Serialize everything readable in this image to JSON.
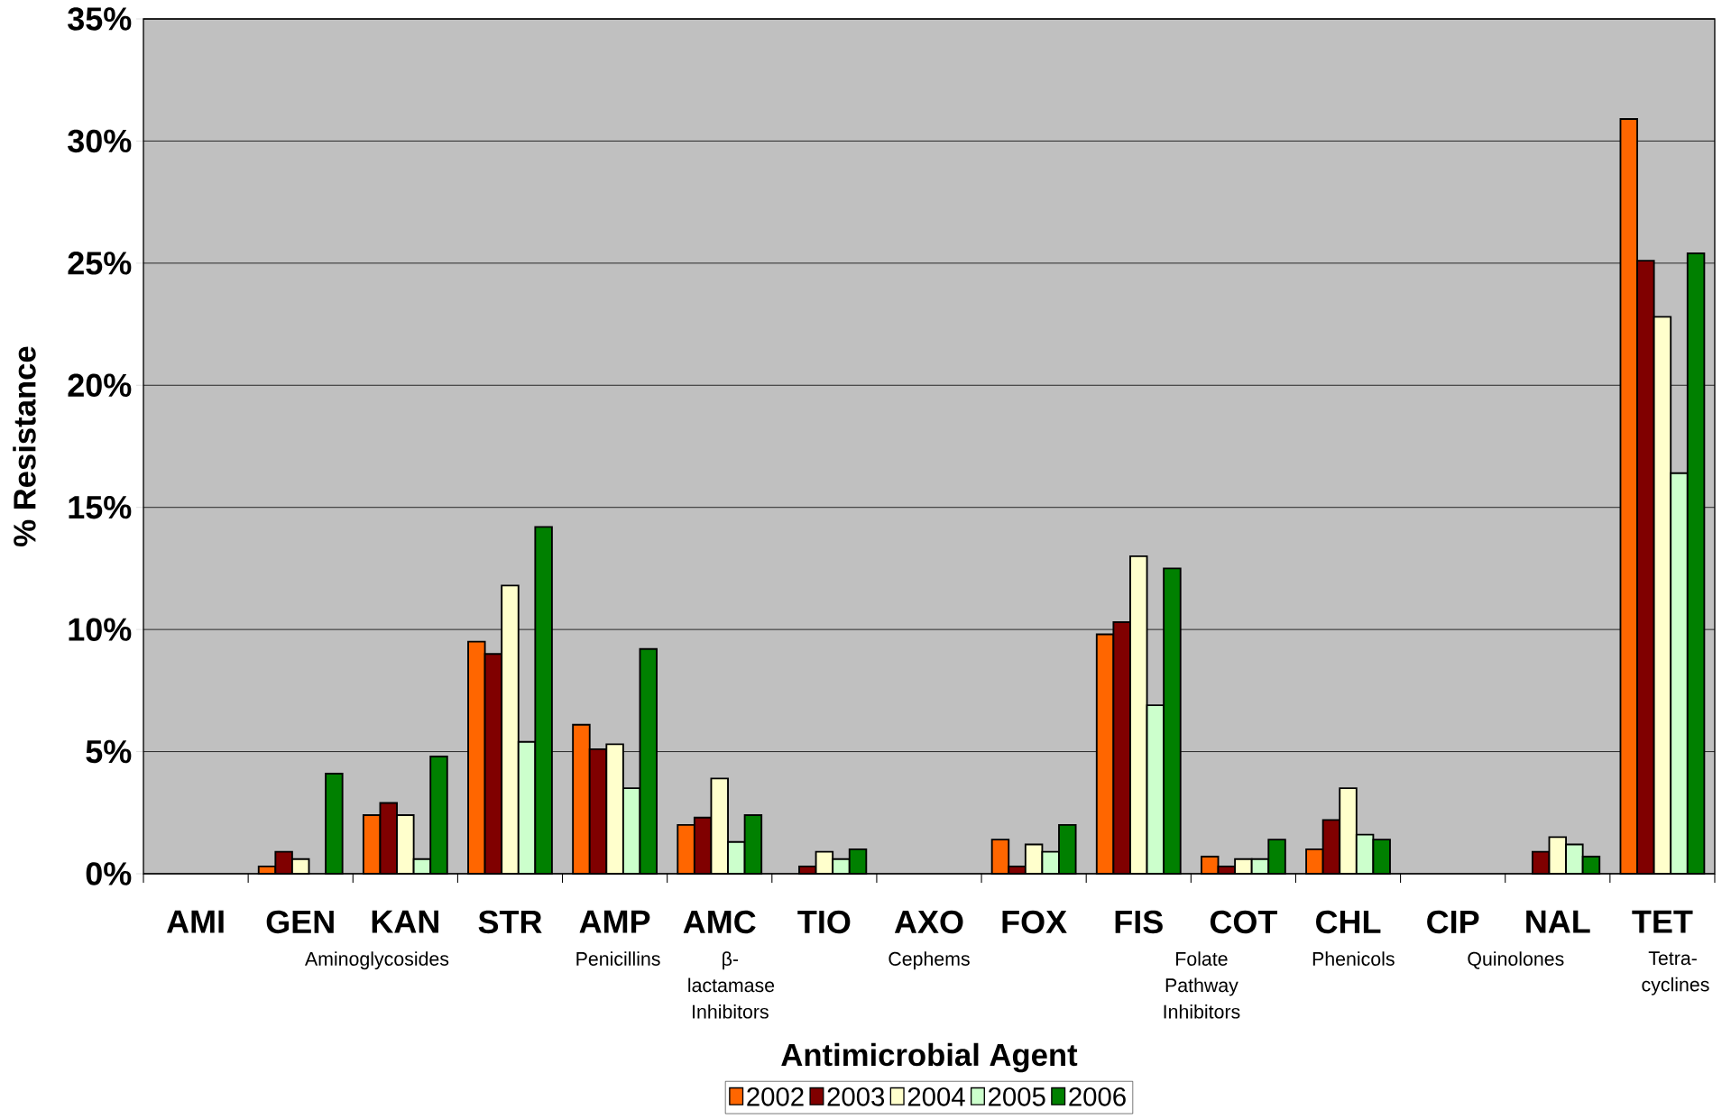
{
  "chart_data": {
    "type": "bar",
    "xlabel": "Antimicrobial Agent",
    "ylabel": "% Resistance",
    "categories": [
      "AMI",
      "GEN",
      "KAN",
      "STR",
      "AMP",
      "AMC",
      "TIO",
      "AXO",
      "FOX",
      "FIS",
      "COT",
      "CHL",
      "CIP",
      "NAL",
      "TET"
    ],
    "series": [
      {
        "name": "2002",
        "color": "#ff6600",
        "values": [
          0,
          0.3,
          2.4,
          9.5,
          6.1,
          2.0,
          0,
          0,
          1.4,
          9.8,
          0.7,
          1.0,
          0,
          0,
          30.9
        ]
      },
      {
        "name": "2003",
        "color": "#800000",
        "values": [
          0,
          0.9,
          2.9,
          9.0,
          5.1,
          2.3,
          0.3,
          0,
          0.3,
          10.3,
          0.3,
          2.2,
          0,
          0.9,
          25.1
        ]
      },
      {
        "name": "2004",
        "color": "#ffffcc",
        "values": [
          0,
          0.6,
          2.4,
          11.8,
          5.3,
          3.9,
          0.9,
          0,
          1.2,
          13.0,
          0.6,
          3.5,
          0,
          1.5,
          22.8
        ]
      },
      {
        "name": "2005",
        "color": "#ccffcc",
        "values": [
          0,
          0,
          0.6,
          5.4,
          3.5,
          1.3,
          0.6,
          0,
          0.9,
          6.9,
          0.6,
          1.6,
          0,
          1.2,
          16.4
        ]
      },
      {
        "name": "2006",
        "color": "#008000",
        "values": [
          0,
          4.1,
          4.8,
          14.2,
          9.2,
          2.4,
          1.0,
          0,
          2.0,
          12.5,
          1.4,
          1.4,
          0,
          0.7,
          25.4
        ]
      }
    ],
    "ylim": [
      0,
      35
    ],
    "yticks": [
      {
        "value": 0,
        "label": "0%"
      },
      {
        "value": 5,
        "label": "5%"
      },
      {
        "value": 10,
        "label": "10%"
      },
      {
        "value": 15,
        "label": "15%"
      },
      {
        "value": 20,
        "label": "20%"
      },
      {
        "value": 25,
        "label": "25%"
      },
      {
        "value": 30,
        "label": "30%"
      },
      {
        "value": 35,
        "label": "35%"
      }
    ],
    "grid": "y",
    "legend": "bottom",
    "annotations": [
      "Aminoglycosides",
      "Penicillins",
      "β-lactamase Inhibitors",
      "Cephems",
      "Folate Pathway Inhibitors",
      "Phenicols",
      "Quinolones",
      "Tetra-cyclines"
    ]
  }
}
